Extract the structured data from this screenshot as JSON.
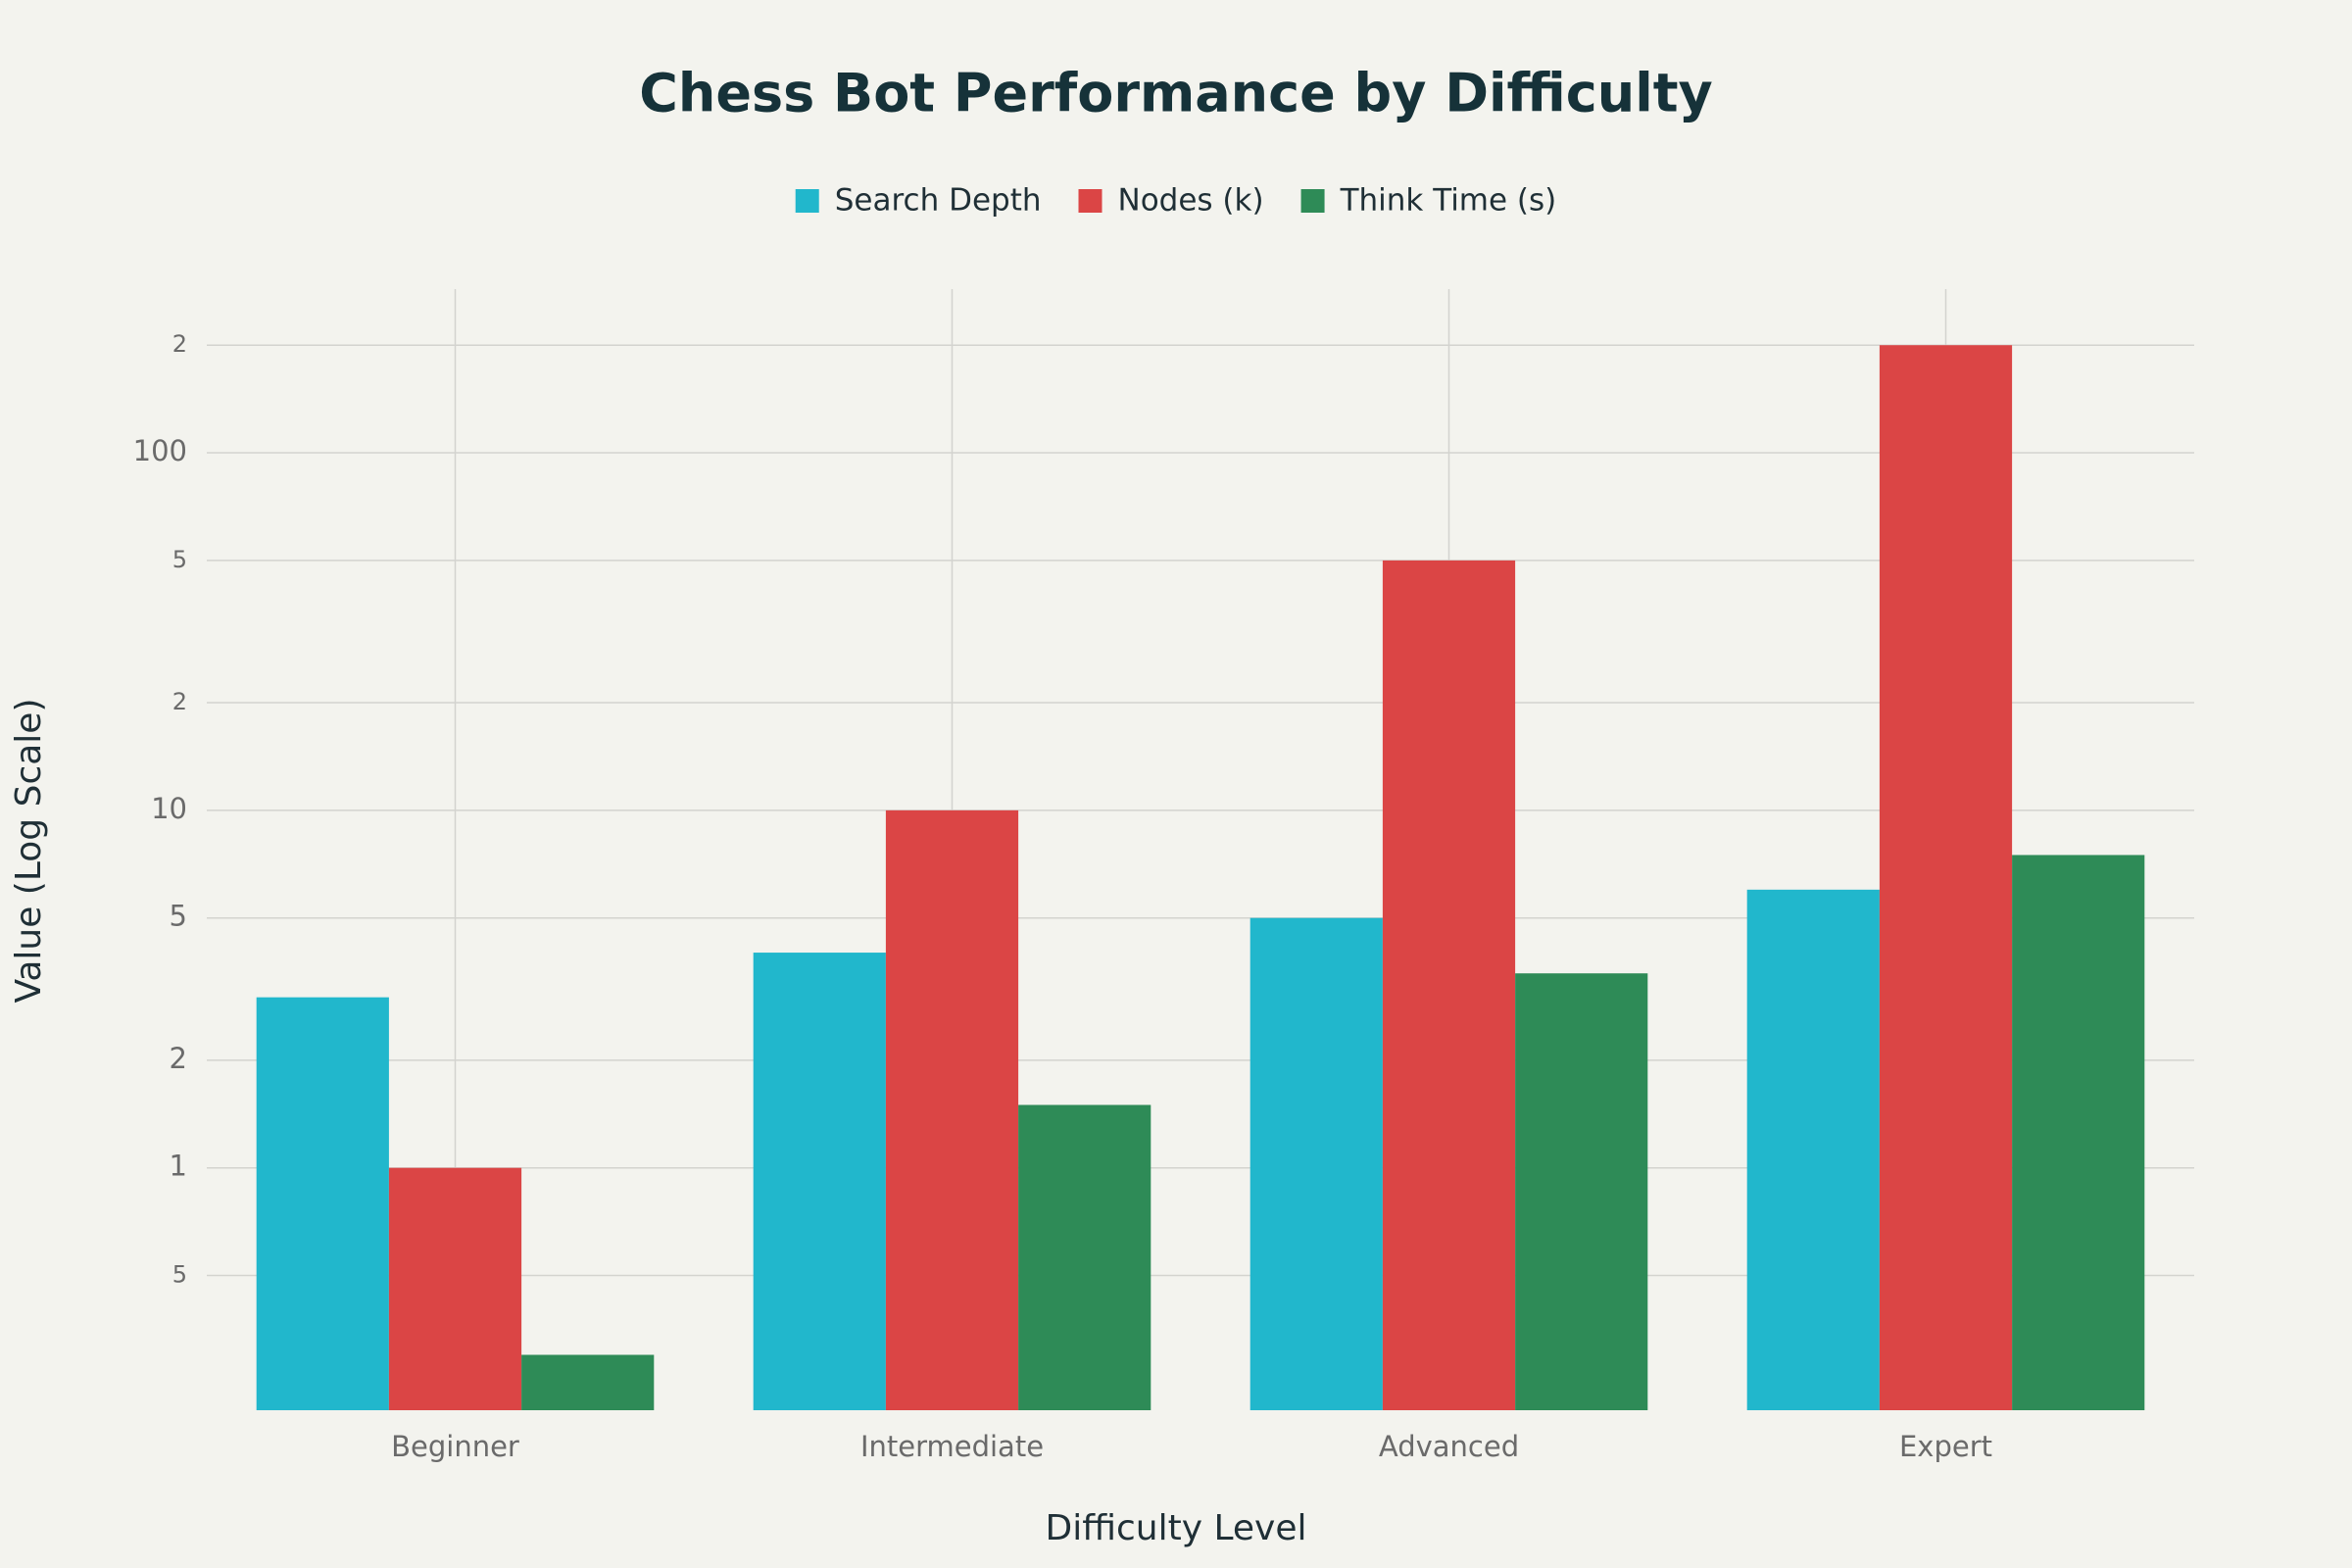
{
  "chart_data": {
    "type": "bar",
    "title": "Chess Bot Performance by Difficulty",
    "x_label": "Difficulty Level",
    "y_label": "Value (Log Scale)",
    "categories": [
      "Beginner",
      "Intermediate",
      "Advanced",
      "Expert"
    ],
    "series": [
      {
        "name": "Search Depth",
        "color": "#21b7cc",
        "values": [
          3,
          4,
          5,
          6
        ]
      },
      {
        "name": "Nodes (k)",
        "color": "#db4545",
        "values": [
          1,
          10,
          50,
          200
        ]
      },
      {
        "name": "Think Time (s)",
        "color": "#2e8b57",
        "values": [
          0.3,
          1.5,
          3.5,
          7.5
        ]
      }
    ],
    "y_scale": "log",
    "ylim": [
      0.21,
      287
    ],
    "yticks": [
      {
        "value": 0.5,
        "label": "5"
      },
      1,
      2,
      5,
      10,
      {
        "value": 20,
        "label": "2"
      },
      {
        "value": 50,
        "label": "5"
      },
      100,
      {
        "value": 200,
        "label": "2"
      }
    ],
    "grid": true,
    "legend": "top"
  }
}
